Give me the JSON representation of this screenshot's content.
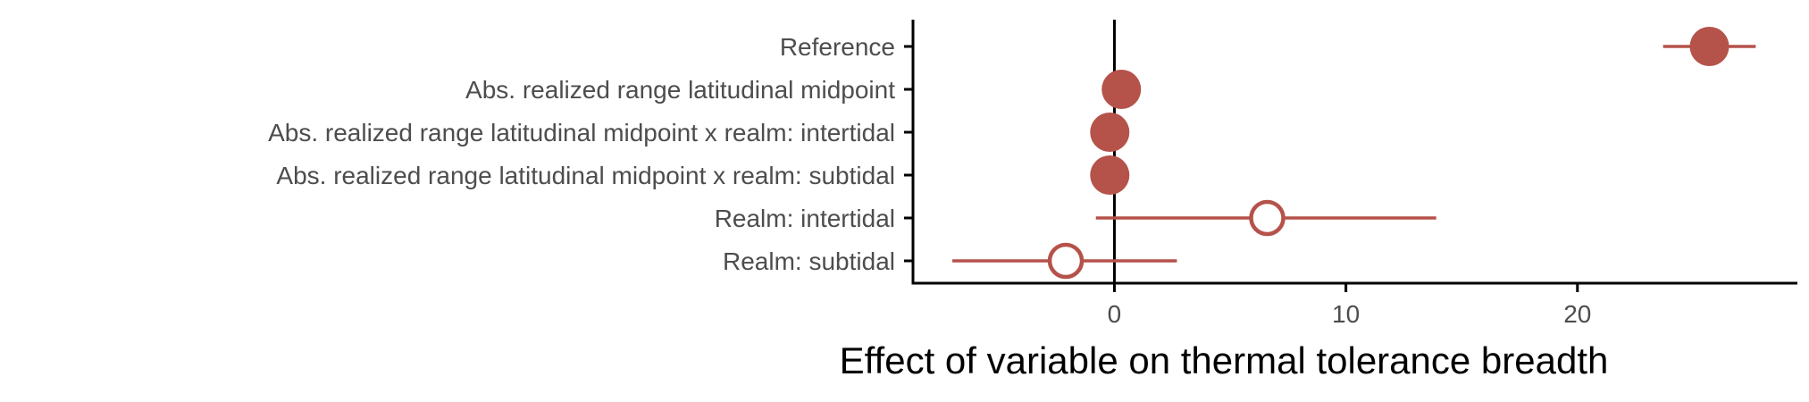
{
  "chart_data": {
    "type": "scatter",
    "subtype": "coefficient-plot",
    "title": "",
    "xlabel": "Effect of variable on thermal tolerance breadth",
    "ylabel": "",
    "xlim": [
      -8.7,
      29.5
    ],
    "x_ticks": [
      0,
      10,
      20
    ],
    "x_tick_labels": [
      "0",
      "10",
      "20"
    ],
    "reference_line_x": 0,
    "grid": false,
    "legend": "none",
    "color": "#b5524a",
    "categories": [
      "Reference",
      "Abs. realized range latitudinal midpoint",
      "Abs. realized range latitudinal midpoint x realm: intertidal",
      "Abs. realized range latitudinal midpoint x realm: subtidal",
      "Realm: intertidal",
      "Realm: subtidal"
    ],
    "estimates": [
      25.7,
      0.3,
      -0.2,
      -0.2,
      6.6,
      -2.1
    ],
    "ci_low": [
      23.7,
      0.2,
      -0.3,
      -0.3,
      -0.8,
      -7.0
    ],
    "ci_high": [
      27.7,
      0.4,
      -0.1,
      -0.1,
      13.9,
      2.7
    ],
    "filled": [
      true,
      true,
      true,
      true,
      false,
      false
    ]
  }
}
